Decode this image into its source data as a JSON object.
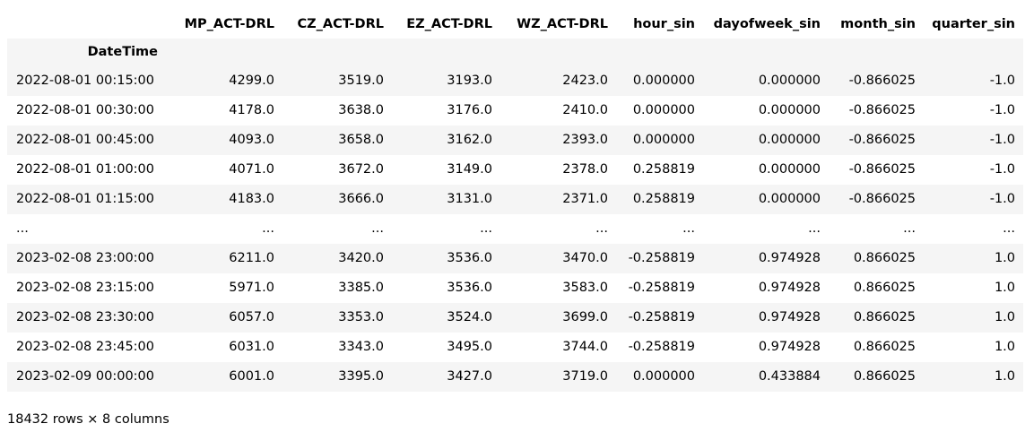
{
  "columns": [
    "MP_ACT-DRL",
    "CZ_ACT-DRL",
    "EZ_ACT-DRL",
    "WZ_ACT-DRL",
    "hour_sin",
    "dayofweek_sin",
    "month_sin",
    "quarter_sin"
  ],
  "index_name": "DateTime",
  "rows": [
    {
      "index": "2022-08-01 00:15:00",
      "cells": [
        "4299.0",
        "3519.0",
        "3193.0",
        "2423.0",
        "0.000000",
        "0.000000",
        "-0.866025",
        "-1.0"
      ]
    },
    {
      "index": "2022-08-01 00:30:00",
      "cells": [
        "4178.0",
        "3638.0",
        "3176.0",
        "2410.0",
        "0.000000",
        "0.000000",
        "-0.866025",
        "-1.0"
      ]
    },
    {
      "index": "2022-08-01 00:45:00",
      "cells": [
        "4093.0",
        "3658.0",
        "3162.0",
        "2393.0",
        "0.000000",
        "0.000000",
        "-0.866025",
        "-1.0"
      ]
    },
    {
      "index": "2022-08-01 01:00:00",
      "cells": [
        "4071.0",
        "3672.0",
        "3149.0",
        "2378.0",
        "0.258819",
        "0.000000",
        "-0.866025",
        "-1.0"
      ]
    },
    {
      "index": "2022-08-01 01:15:00",
      "cells": [
        "4183.0",
        "3666.0",
        "3131.0",
        "2371.0",
        "0.258819",
        "0.000000",
        "-0.866025",
        "-1.0"
      ]
    },
    {
      "index": "...",
      "cells": [
        "...",
        "...",
        "...",
        "...",
        "...",
        "...",
        "...",
        "..."
      ]
    },
    {
      "index": "2023-02-08 23:00:00",
      "cells": [
        "6211.0",
        "3420.0",
        "3536.0",
        "3470.0",
        "-0.258819",
        "0.974928",
        "0.866025",
        "1.0"
      ]
    },
    {
      "index": "2023-02-08 23:15:00",
      "cells": [
        "5971.0",
        "3385.0",
        "3536.0",
        "3583.0",
        "-0.258819",
        "0.974928",
        "0.866025",
        "1.0"
      ]
    },
    {
      "index": "2023-02-08 23:30:00",
      "cells": [
        "6057.0",
        "3353.0",
        "3524.0",
        "3699.0",
        "-0.258819",
        "0.974928",
        "0.866025",
        "1.0"
      ]
    },
    {
      "index": "2023-02-08 23:45:00",
      "cells": [
        "6031.0",
        "3343.0",
        "3495.0",
        "3744.0",
        "-0.258819",
        "0.974928",
        "0.866025",
        "1.0"
      ]
    },
    {
      "index": "2023-02-09 00:00:00",
      "cells": [
        "6001.0",
        "3395.0",
        "3427.0",
        "3719.0",
        "0.000000",
        "0.433884",
        "0.866025",
        "1.0"
      ]
    }
  ],
  "shape_note": "18432 rows × 8 columns"
}
